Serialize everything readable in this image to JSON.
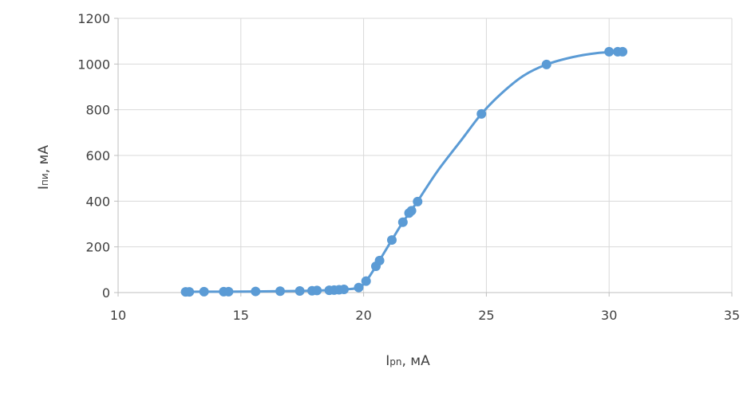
{
  "chart_data": {
    "type": "scatter",
    "title": "",
    "xlabel": "Ipn, мА",
    "xlabel_main": "I",
    "xlabel_sub": "pn",
    "xlabel_rest": ", мА",
    "ylabel": "Iпи, мА",
    "ylabel_main": "I",
    "ylabel_sub": "пи",
    "ylabel_rest": ", мА",
    "xlim": [
      10,
      35
    ],
    "ylim": [
      0,
      1200
    ],
    "xticks": [
      10,
      15,
      20,
      25,
      30,
      35
    ],
    "yticks": [
      0,
      200,
      400,
      600,
      800,
      1000,
      1200
    ],
    "grid": true,
    "legend": "none",
    "colors": {
      "series": "#5b9bd5",
      "grid": "#d9d9d9",
      "axis": "#bfbfbf"
    },
    "series": [
      {
        "x": [
          12.75,
          12.9,
          13.5,
          14.3,
          14.5,
          15.6,
          16.6,
          17.4,
          17.9,
          18.1,
          18.6,
          18.8,
          19.0,
          19.2,
          19.8,
          20.1,
          20.5,
          20.65,
          21.15,
          21.6,
          21.85,
          21.95,
          22.2,
          24.8,
          27.45,
          30.0,
          30.35,
          30.55
        ],
        "y": [
          3,
          3,
          4,
          4,
          4,
          5,
          6,
          7,
          8,
          9,
          10,
          11,
          12,
          14,
          22,
          50,
          115,
          140,
          230,
          308,
          348,
          358,
          398,
          782,
          998,
          1054,
          1054,
          1054
        ]
      }
    ],
    "curve": {
      "x": [
        12.75,
        13.5,
        14.5,
        15.6,
        16.6,
        17.4,
        18.1,
        18.8,
        19.3,
        19.8,
        20.1,
        20.5,
        21.15,
        21.6,
        22.2,
        23.0,
        24.0,
        24.8,
        25.6,
        26.5,
        27.45,
        28.5,
        29.5,
        30.55
      ],
      "y": [
        3,
        4,
        4,
        5,
        6,
        7,
        9,
        11,
        14,
        22,
        50,
        115,
        230,
        308,
        400,
        530,
        670,
        782,
        870,
        948,
        998,
        1030,
        1048,
        1054
      ]
    }
  }
}
